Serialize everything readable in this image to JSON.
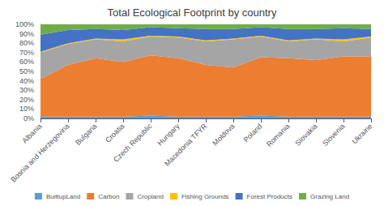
{
  "chart_data": {
    "type": "area",
    "title": "Total Ecological Footprint by country",
    "categories": [
      "Albania",
      "Bosnia and Herzegovina",
      "Bulgaria",
      "Croatia",
      "Czech Republic",
      "Hungary",
      "Macedonia TFYR",
      "Moldova",
      "Poland",
      "Romania",
      "Slovakia",
      "Slovenia",
      "Ukraine"
    ],
    "series": [
      {
        "name": "BuiltupLand",
        "color": "#5B9BD5",
        "values": [
          0.02,
          0.02,
          0.02,
          0.02,
          0.03,
          0.02,
          0.02,
          0.02,
          0.03,
          0.02,
          0.02,
          0.02,
          0.02
        ]
      },
      {
        "name": "Carbon",
        "color": "#ED7D31",
        "values": [
          0.4,
          0.55,
          0.62,
          0.58,
          0.64,
          0.62,
          0.55,
          0.52,
          0.62,
          0.62,
          0.6,
          0.64,
          0.64
        ]
      },
      {
        "name": "Cropland",
        "color": "#A5A5A5",
        "values": [
          0.28,
          0.22,
          0.2,
          0.22,
          0.2,
          0.22,
          0.25,
          0.3,
          0.22,
          0.18,
          0.22,
          0.16,
          0.2
        ]
      },
      {
        "name": "Fishing Grounds",
        "color": "#FFC000",
        "values": [
          0.01,
          0.01,
          0.01,
          0.02,
          0.01,
          0.01,
          0.01,
          0.01,
          0.01,
          0.01,
          0.01,
          0.02,
          0.01
        ]
      },
      {
        "name": "Forest Products",
        "color": "#4472C4",
        "values": [
          0.18,
          0.14,
          0.1,
          0.1,
          0.09,
          0.09,
          0.12,
          0.1,
          0.09,
          0.12,
          0.1,
          0.12,
          0.08
        ]
      },
      {
        "name": "Grazing Land",
        "color": "#70AD47",
        "values": [
          0.11,
          0.06,
          0.05,
          0.06,
          0.03,
          0.04,
          0.05,
          0.05,
          0.03,
          0.05,
          0.05,
          0.04,
          0.05
        ]
      }
    ],
    "stacked": true,
    "ylim": [
      0,
      1
    ],
    "yticks": [
      {
        "value": 0.0,
        "label": "0%"
      },
      {
        "value": 0.1,
        "label": "10%"
      },
      {
        "value": 0.2,
        "label": "20%"
      },
      {
        "value": 0.3,
        "label": "30%"
      },
      {
        "value": 0.4,
        "label": "40%"
      },
      {
        "value": 0.5,
        "label": "50%"
      },
      {
        "value": 0.6,
        "label": "60%"
      },
      {
        "value": 0.7,
        "label": "70%"
      },
      {
        "value": 0.8,
        "label": "80%"
      },
      {
        "value": 0.9,
        "label": "90%"
      },
      {
        "value": 1.0,
        "label": "100%"
      }
    ],
    "grid": true,
    "legend": "bottom"
  }
}
